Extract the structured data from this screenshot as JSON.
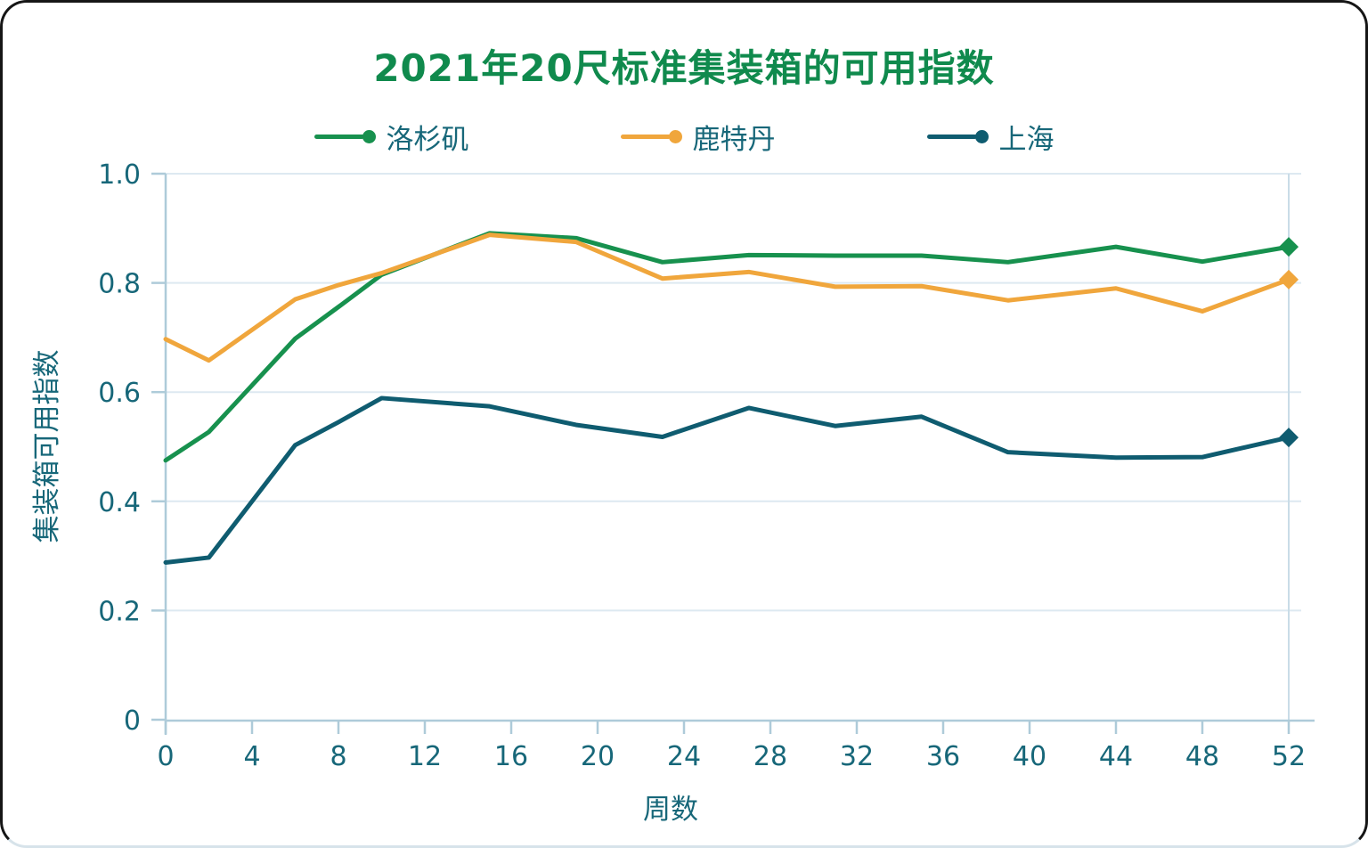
{
  "chart_data": {
    "type": "line",
    "title": "2021年20尺标准集装箱的可用指数",
    "xlabel": "周数",
    "ylabel": "集装箱可用指数",
    "x": [
      0,
      2,
      6,
      8,
      10,
      15,
      19,
      23,
      27,
      31,
      35,
      39,
      44,
      48,
      52
    ],
    "series": [
      {
        "name": "洛杉矶",
        "slug": "los-angeles",
        "color": "#17914E",
        "values": [
          0.475,
          0.527,
          0.698,
          0.756,
          0.815,
          0.891,
          0.882,
          0.838,
          0.851,
          0.85,
          0.85,
          0.838,
          0.866,
          0.839,
          0.866
        ]
      },
      {
        "name": "鹿特丹",
        "slug": "rotterdam",
        "color": "#F0A63C",
        "values": [
          0.697,
          0.658,
          0.77,
          0.796,
          0.818,
          0.888,
          0.875,
          0.808,
          0.82,
          0.793,
          0.794,
          0.768,
          0.79,
          0.748,
          0.806
        ]
      },
      {
        "name": "上海",
        "slug": "shanghai",
        "color": "#0F5C70",
        "values": [
          0.288,
          0.297,
          0.503,
          0.545,
          0.589,
          0.574,
          0.54,
          0.518,
          0.571,
          0.538,
          0.555,
          0.49,
          0.48,
          0.481,
          0.517
        ]
      }
    ],
    "x_tick_labels": [
      "0",
      "4",
      "8",
      "12",
      "16",
      "20",
      "24",
      "28",
      "32",
      "36",
      "40",
      "44",
      "48",
      "52"
    ],
    "y_tick_labels": [
      "1.0",
      "0.8",
      "0.6",
      "0.4",
      "0.2",
      "0"
    ],
    "xlim": [
      0,
      52
    ],
    "ylim": [
      0,
      1.0
    ],
    "grid": "horizontal",
    "legend_position": "top",
    "line_end_marker": "diamond",
    "colors": {
      "title": "#108A4D",
      "text": "#176779",
      "gridline": "#DDE9F1",
      "axis": "#AECBD9",
      "week52_line": "#C9DCE7"
    }
  }
}
